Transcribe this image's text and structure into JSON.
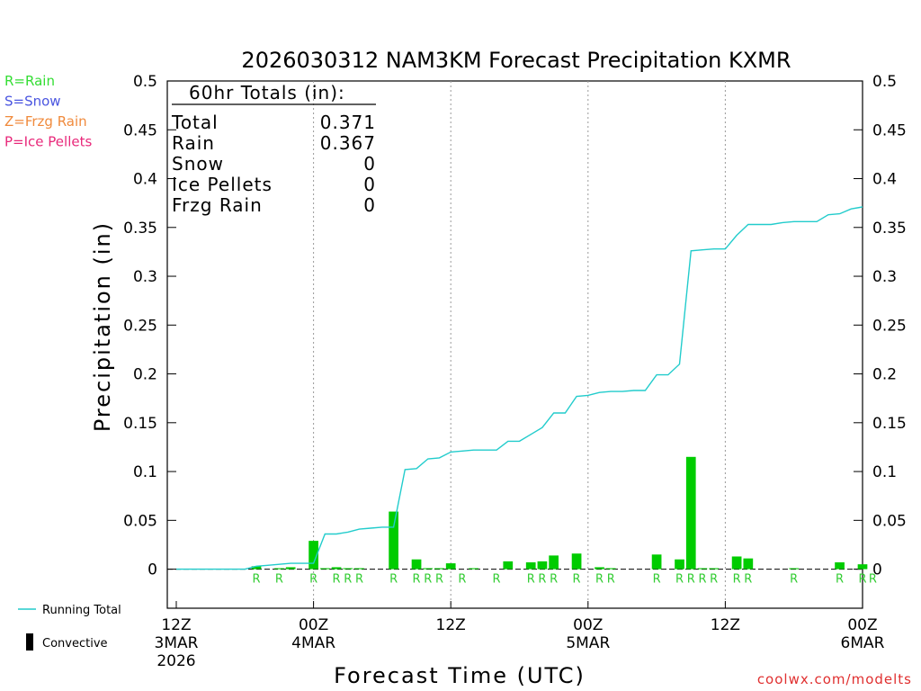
{
  "chart_data": {
    "type": "bar",
    "title": "2026030312 NAM3KM Forecast Precipitation KXMR",
    "xlabel": "Forecast Time (UTC)",
    "ylabel": "Precipitation (in)",
    "ylim": [
      -0.04,
      0.5
    ],
    "yticks": [
      0,
      0.05,
      0.1,
      0.15,
      0.2,
      0.25,
      0.3,
      0.35,
      0.4,
      0.45,
      0.5
    ],
    "ytick_labels": [
      "0",
      "0.05",
      "0.1",
      "0.15",
      "0.2",
      "0.25",
      "0.3",
      "0.35",
      "0.4",
      "0.45",
      "0.5"
    ],
    "xlim_hours": [
      0,
      60
    ],
    "xticks": [
      {
        "hour": 0,
        "lines": [
          "12Z",
          "3MAR",
          "2026"
        ]
      },
      {
        "hour": 12,
        "lines": [
          "00Z",
          "4MAR"
        ]
      },
      {
        "hour": 24,
        "lines": [
          "12Z"
        ]
      },
      {
        "hour": 36,
        "lines": [
          "00Z",
          "5MAR"
        ]
      },
      {
        "hour": 48,
        "lines": [
          "12Z"
        ]
      },
      {
        "hour": 60,
        "lines": [
          "00Z",
          "6MAR"
        ]
      }
    ],
    "grid_hours": [
      12,
      24,
      36,
      48
    ],
    "bars": [
      {
        "hour": 7,
        "value": 0.003
      },
      {
        "hour": 9,
        "value": 0.001
      },
      {
        "hour": 10,
        "value": 0.002
      },
      {
        "hour": 12,
        "value": 0.029
      },
      {
        "hour": 13,
        "value": 0.001
      },
      {
        "hour": 14,
        "value": 0.002
      },
      {
        "hour": 15,
        "value": 0.001
      },
      {
        "hour": 16,
        "value": 0.001
      },
      {
        "hour": 19,
        "value": 0.059
      },
      {
        "hour": 21,
        "value": 0.01
      },
      {
        "hour": 22,
        "value": 0.001
      },
      {
        "hour": 23,
        "value": 0.001
      },
      {
        "hour": 24,
        "value": 0.006
      },
      {
        "hour": 26,
        "value": 0.001
      },
      {
        "hour": 29,
        "value": 0.008
      },
      {
        "hour": 31,
        "value": 0.007
      },
      {
        "hour": 32,
        "value": 0.008
      },
      {
        "hour": 33,
        "value": 0.014
      },
      {
        "hour": 35,
        "value": 0.016
      },
      {
        "hour": 37,
        "value": 0.002
      },
      {
        "hour": 38,
        "value": 0.001
      },
      {
        "hour": 42,
        "value": 0.015
      },
      {
        "hour": 44,
        "value": 0.01
      },
      {
        "hour": 45,
        "value": 0.115
      },
      {
        "hour": 46,
        "value": 0.001
      },
      {
        "hour": 47,
        "value": 0.001
      },
      {
        "hour": 49,
        "value": 0.013
      },
      {
        "hour": 50,
        "value": 0.011
      },
      {
        "hour": 54,
        "value": 0.001
      },
      {
        "hour": 58,
        "value": 0.007
      },
      {
        "hour": 60,
        "value": 0.005
      }
    ],
    "precip_type_markers": [
      {
        "hour": 7,
        "type": "R"
      },
      {
        "hour": 9,
        "type": "R"
      },
      {
        "hour": 12,
        "type": "R"
      },
      {
        "hour": 14,
        "type": "R"
      },
      {
        "hour": 15,
        "type": "R"
      },
      {
        "hour": 16,
        "type": "R"
      },
      {
        "hour": 19,
        "type": "R"
      },
      {
        "hour": 21,
        "type": "R"
      },
      {
        "hour": 22,
        "type": "R"
      },
      {
        "hour": 23,
        "type": "R"
      },
      {
        "hour": 25,
        "type": "R"
      },
      {
        "hour": 28,
        "type": "R"
      },
      {
        "hour": 31,
        "type": "R"
      },
      {
        "hour": 32,
        "type": "R"
      },
      {
        "hour": 33,
        "type": "R"
      },
      {
        "hour": 35,
        "type": "R"
      },
      {
        "hour": 37,
        "type": "R"
      },
      {
        "hour": 38,
        "type": "R"
      },
      {
        "hour": 42,
        "type": "R"
      },
      {
        "hour": 44,
        "type": "R"
      },
      {
        "hour": 45,
        "type": "R"
      },
      {
        "hour": 46,
        "type": "R"
      },
      {
        "hour": 47,
        "type": "R"
      },
      {
        "hour": 49,
        "type": "R"
      },
      {
        "hour": 50,
        "type": "R"
      },
      {
        "hour": 54,
        "type": "R"
      },
      {
        "hour": 58,
        "type": "R"
      },
      {
        "hour": 60,
        "type": "R"
      },
      {
        "hour": 60.9,
        "type": "R"
      }
    ],
    "running_total": {
      "name": "Running Total",
      "hours": [
        0,
        6,
        7,
        8,
        9,
        10,
        11,
        12,
        13,
        14,
        15,
        16,
        17,
        18,
        19,
        20,
        21,
        22,
        23,
        24,
        25,
        26,
        27,
        28,
        29,
        30,
        31,
        32,
        33,
        34,
        35,
        36,
        37,
        38,
        39,
        40,
        41,
        42,
        43,
        44,
        45,
        46,
        47,
        48,
        49,
        50,
        51,
        52,
        53,
        54,
        55,
        56,
        57,
        58,
        59,
        60
      ],
      "values": [
        0,
        0,
        0.003,
        0.004,
        0.005,
        0.006,
        0.006,
        0.006,
        0.036,
        0.036,
        0.038,
        0.041,
        0.042,
        0.043,
        0.043,
        0.102,
        0.103,
        0.113,
        0.114,
        0.12,
        0.121,
        0.122,
        0.122,
        0.122,
        0.131,
        0.131,
        0.138,
        0.145,
        0.16,
        0.16,
        0.177,
        0.178,
        0.181,
        0.182,
        0.182,
        0.183,
        0.183,
        0.199,
        0.199,
        0.21,
        0.326,
        0.327,
        0.328,
        0.328,
        0.342,
        0.353,
        0.353,
        0.353,
        0.355,
        0.356,
        0.356,
        0.356,
        0.363,
        0.364,
        0.369,
        0.371
      ]
    },
    "totals_box": {
      "header": "60hr Totals (in):",
      "rows": [
        {
          "label": "Total",
          "value": "0.371"
        },
        {
          "label": "Rain",
          "value": "0.367"
        },
        {
          "label": "Snow",
          "value": "0"
        },
        {
          "label": "Ice Pellets",
          "value": "0"
        },
        {
          "label": "Frzg Rain",
          "value": "0"
        }
      ]
    },
    "type_legend": [
      {
        "label": "R=Rain",
        "color": "#33dd33"
      },
      {
        "label": "S=Snow",
        "color": "#4a55e0"
      },
      {
        "label": "Z=Frzg Rain",
        "color": "#f08a3c"
      },
      {
        "label": "P=Ice Pellets",
        "color": "#e8287a"
      }
    ],
    "series_legend": [
      {
        "label": "Running Total",
        "kind": "line"
      },
      {
        "label": "Convective",
        "kind": "bar"
      }
    ],
    "credit": "coolwx.com/modelts"
  },
  "colors": {
    "bar": "#00cc00",
    "running_total": "#22cccc",
    "rain_marker": "#33cc33",
    "credit": "#e03030",
    "axis": "#000000",
    "grid": "#999999"
  }
}
